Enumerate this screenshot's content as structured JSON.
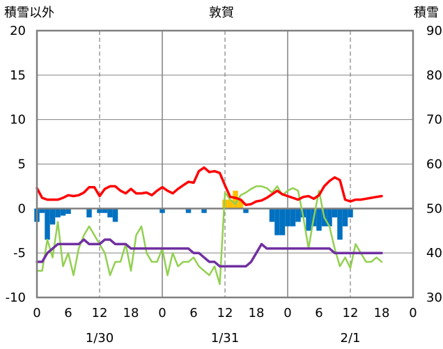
{
  "chart_data": {
    "type": "line",
    "title": "敦賀",
    "left_axis": {
      "label": "積雪以外",
      "ticks": [
        20,
        15,
        10,
        5,
        0,
        -5,
        -10
      ],
      "ylim": [
        -10,
        20
      ]
    },
    "right_axis": {
      "label": "積雪",
      "ticks": [
        90,
        80,
        70,
        60,
        50,
        40,
        30
      ],
      "ylim": [
        30,
        90
      ]
    },
    "x_ticks": [
      "0",
      "6",
      "12",
      "18",
      "0",
      "6",
      "12",
      "18",
      "0",
      "6",
      "12",
      "18",
      "0"
    ],
    "x_range_hours": [
      0,
      72
    ],
    "date_labels": [
      {
        "label": "1/30",
        "hour": 12
      },
      {
        "label": "1/31",
        "hour": 36
      },
      {
        "label": "2/1",
        "hour": 60
      }
    ],
    "grid": true,
    "colors": {
      "temperature": "#ff0000",
      "wind": "#92d050",
      "snow_depth": "#7030a0",
      "precip_negative": "#0070c0",
      "precip_positive": "#ffc000",
      "zero_line": "#808080",
      "frame": "#808080"
    },
    "series": [
      {
        "role": "temperature",
        "axis": "left",
        "x": [
          0,
          1,
          2,
          3,
          4,
          5,
          6,
          7,
          8,
          9,
          10,
          11,
          12,
          13,
          14,
          15,
          16,
          17,
          18,
          19,
          20,
          21,
          22,
          23,
          24,
          25,
          26,
          27,
          28,
          29,
          30,
          31,
          32,
          33,
          34,
          35,
          36,
          37,
          38,
          39,
          40,
          41,
          42,
          43,
          44,
          45,
          46,
          47,
          48,
          49,
          50,
          51,
          52,
          53,
          54,
          55,
          56,
          57,
          58,
          59,
          60,
          61,
          62,
          63,
          64,
          65,
          66
        ],
        "y": [
          2.3,
          1.2,
          1.0,
          1.0,
          1.0,
          1.2,
          1.5,
          1.4,
          1.5,
          1.8,
          2.4,
          2.4,
          1.4,
          2.2,
          2.5,
          2.5,
          2.0,
          1.7,
          2.2,
          1.7,
          1.7,
          1.8,
          1.5,
          2.0,
          2.4,
          2.0,
          1.7,
          2.2,
          2.6,
          3.0,
          2.9,
          4.2,
          4.6,
          4.1,
          4.2,
          4.0,
          2.6,
          1.3,
          1.2,
          1.0,
          0.4,
          0.5,
          0.8,
          0.9,
          1.2,
          1.6,
          2.0,
          1.6,
          1.4,
          1.2,
          1.0,
          1.3,
          1.4,
          1.1,
          1.5,
          2.5,
          3.1,
          3.5,
          3.2,
          1.0,
          0.8,
          1.0,
          1.0,
          1.1,
          1.2,
          1.3,
          1.4
        ]
      },
      {
        "role": "wind",
        "axis": "left",
        "x": [
          0,
          1,
          2,
          3,
          4,
          5,
          6,
          7,
          8,
          9,
          10,
          11,
          12,
          13,
          14,
          15,
          16,
          17,
          18,
          19,
          20,
          21,
          22,
          23,
          24,
          25,
          26,
          27,
          28,
          29,
          30,
          31,
          32,
          33,
          34,
          35,
          36,
          37,
          38,
          39,
          40,
          41,
          42,
          43,
          44,
          45,
          46,
          47,
          48,
          49,
          50,
          51,
          52,
          53,
          54,
          55,
          56,
          57,
          58,
          59,
          60,
          61,
          62,
          63,
          64,
          65,
          66
        ],
        "y": [
          -7,
          -7,
          -3.5,
          -5.5,
          -1.5,
          -6.5,
          -5,
          -7.5,
          -4.5,
          -3,
          -2,
          -3,
          -4,
          -5,
          -7.5,
          -6,
          -6,
          -4,
          -7,
          -3,
          -2,
          -5,
          -6,
          -6,
          -4.5,
          -7.5,
          -5,
          -6.5,
          -6,
          -6,
          -5.5,
          -6.5,
          -7,
          -7.5,
          -6.5,
          -8.5,
          1.8,
          1,
          0.5,
          1.5,
          1.8,
          2.2,
          2.5,
          2.5,
          2.3,
          1.8,
          2.5,
          1.5,
          2,
          2.3,
          2,
          -1,
          -4.5,
          -1,
          2,
          -1,
          -2,
          -4.5,
          -6.5,
          -5.5,
          -6.7,
          -4,
          -5,
          -6,
          -6,
          -5.5,
          -6
        ]
      },
      {
        "role": "snow_depth",
        "axis": "right",
        "x": [
          0,
          1,
          2,
          3,
          4,
          5,
          6,
          7,
          8,
          9,
          10,
          11,
          12,
          13,
          14,
          15,
          16,
          17,
          18,
          19,
          20,
          21,
          22,
          23,
          24,
          25,
          26,
          27,
          28,
          29,
          30,
          31,
          32,
          33,
          34,
          35,
          36,
          37,
          38,
          39,
          40,
          41,
          42,
          43,
          44,
          45,
          46,
          47,
          48,
          49,
          50,
          51,
          52,
          53,
          54,
          55,
          56,
          57,
          58,
          59,
          60,
          61,
          62,
          63,
          64,
          65,
          66
        ],
        "y": [
          38,
          38,
          40,
          41,
          42,
          42,
          42,
          42,
          42,
          43,
          42,
          42,
          42,
          43,
          43,
          42,
          42,
          42,
          41,
          41,
          41,
          41,
          41,
          41,
          41,
          41,
          41,
          41,
          41,
          41,
          40,
          40,
          39,
          38,
          38,
          37,
          37,
          37,
          37,
          37,
          37,
          38,
          40,
          42,
          41,
          41,
          41,
          41,
          41,
          41,
          41,
          41,
          41,
          41,
          41,
          41,
          41,
          40,
          40,
          40,
          40,
          40,
          40,
          40,
          40,
          40,
          40
        ]
      },
      {
        "role": "precipitation",
        "axis": "left",
        "x": [
          0,
          1,
          2,
          3,
          4,
          5,
          6,
          7,
          8,
          9,
          10,
          11,
          12,
          13,
          14,
          15,
          16,
          17,
          18,
          19,
          20,
          21,
          22,
          23,
          24,
          25,
          26,
          27,
          28,
          29,
          30,
          31,
          32,
          33,
          34,
          35,
          36,
          37,
          38,
          39,
          40,
          41,
          42,
          43,
          44,
          45,
          46,
          47,
          48,
          49,
          50,
          51,
          52,
          53,
          54,
          55,
          56,
          57,
          58,
          59,
          60,
          61,
          62,
          63,
          64,
          65,
          66
        ],
        "y": [
          -1.5,
          -0.5,
          -3.5,
          -1.8,
          -1.0,
          -0.8,
          -0.6,
          0,
          0,
          0,
          -1.0,
          0,
          -0.5,
          -0.5,
          -1.0,
          -1.5,
          0,
          0,
          0,
          0,
          0,
          0,
          0,
          0,
          -0.5,
          0,
          0,
          0,
          0,
          -0.5,
          0,
          0,
          -0.5,
          0,
          0,
          0,
          0,
          0,
          0,
          0,
          -0.5,
          0,
          0,
          0,
          0,
          -1.5,
          -3.0,
          -3.0,
          -2.0,
          -2.0,
          -1.5,
          -1.0,
          -2.5,
          -2.0,
          -2.5,
          -2.0,
          -2.0,
          -1.0,
          -3.5,
          -2.0,
          -1.0,
          0,
          0,
          0,
          0,
          0,
          0
        ]
      }
    ],
    "precip_positive": [
      {
        "x": 36,
        "y": 1.0
      },
      {
        "x": 37,
        "y": 1.0
      },
      {
        "x": 38,
        "y": 2.0
      },
      {
        "x": 39,
        "y": 1.0
      }
    ]
  }
}
